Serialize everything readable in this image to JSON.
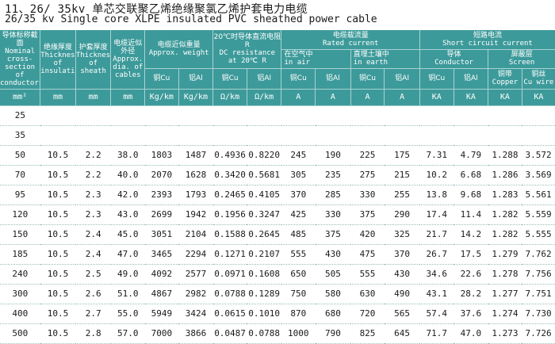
{
  "title": {
    "cn": "11、26/ 35kv  单芯交联聚乙烯绝缘聚氯乙烯护套电力电缆",
    "en": "26/35 kv  Single core XLPE insulated PVC sheathed power cable"
  },
  "headers": {
    "section": {
      "cn": "导体标称截面",
      "en": "Nominal cross-section of conductors"
    },
    "insulation": {
      "cn": "绝缘厚度",
      "en": "Thickness of insulation"
    },
    "sheath": {
      "cn": "护套厚度",
      "en": "Thickness of sheath"
    },
    "diameter": {
      "cn": "电缆近似外径",
      "en": "Approx. dia. of cables"
    },
    "weight": {
      "cn": "电缆近似重量",
      "en": "Approx. weight",
      "cu": "铜Cu",
      "al": "铝Al"
    },
    "resistance": {
      "cn": "20℃时导体直流电阻R",
      "en1": "DC resistance",
      "en2": "at 20℃ R",
      "cu": "铜Cu",
      "al": "铝Al"
    },
    "rated": {
      "cn": "电缆载流量",
      "en": "Rated current",
      "air_cn": "在空气中",
      "air_en": "in air",
      "earth_cn": "直埋土壤中",
      "earth_en": "in earth",
      "cu": "铜Cu",
      "al": "铝Al"
    },
    "short": {
      "cn": "短路电流",
      "en": "Short circuit current",
      "cond_cn": "导体",
      "cond_en": "Conductor",
      "screen_cn": "屏蔽层",
      "screen_en": "Screen",
      "cu": "铜Cu",
      "al": "铝Al",
      "tape_cn": "铜带",
      "tape_en": "Copper",
      "wire_cn": "铜丝",
      "wire_en": "Cu wire"
    }
  },
  "units": [
    "mm²",
    "mm",
    "mm",
    "mm",
    "Kg/km",
    "Kg/km",
    "Ω/km",
    "Ω/km",
    "A",
    "A",
    "A",
    "A",
    "KA",
    "KA",
    "KA",
    "KA"
  ],
  "rows": [
    [
      "25",
      "",
      "",
      "",
      "",
      "",
      "",
      "",
      "",
      "",
      "",
      "",
      "",
      "",
      "",
      ""
    ],
    [
      "35",
      "",
      "",
      "",
      "",
      "",
      "",
      "",
      "",
      "",
      "",
      "",
      "",
      "",
      "",
      ""
    ],
    [
      "50",
      "10.5",
      "2.2",
      "38.0",
      "1803",
      "1487",
      "0.4936",
      "0.8220",
      "245",
      "190",
      "225",
      "175",
      "7.31",
      "4.79",
      "1.288",
      "3.572"
    ],
    [
      "70",
      "10.5",
      "2.2",
      "40.0",
      "2070",
      "1628",
      "0.3420",
      "0.5681",
      "305",
      "235",
      "275",
      "215",
      "10.2",
      "6.68",
      "1.286",
      "3.569"
    ],
    [
      "95",
      "10.5",
      "2.3",
      "42.0",
      "2393",
      "1793",
      "0.2465",
      "0.4105",
      "370",
      "285",
      "330",
      "255",
      "13.8",
      "9.68",
      "1.283",
      "5.561"
    ],
    [
      "120",
      "10.5",
      "2.3",
      "43.0",
      "2699",
      "1942",
      "0.1956",
      "0.3247",
      "425",
      "330",
      "375",
      "290",
      "17.4",
      "11.4",
      "1.282",
      "5.559"
    ],
    [
      "150",
      "10.5",
      "2.4",
      "45.0",
      "3051",
      "2104",
      "0.1588",
      "0.2645",
      "485",
      "375",
      "420",
      "325",
      "21.7",
      "14.2",
      "1.282",
      "5.555"
    ],
    [
      "185",
      "10.5",
      "2.4",
      "47.0",
      "3465",
      "2294",
      "0.1271",
      "0.2107",
      "555",
      "430",
      "475",
      "370",
      "26.7",
      "17.5",
      "1.279",
      "7.762"
    ],
    [
      "240",
      "10.5",
      "2.5",
      "49.0",
      "4092",
      "2577",
      "0.0971",
      "0.1608",
      "650",
      "505",
      "555",
      "430",
      "34.6",
      "22.6",
      "1.278",
      "7.756"
    ],
    [
      "300",
      "10.5",
      "2.6",
      "51.0",
      "4867",
      "2982",
      "0.0788",
      "0.1289",
      "750",
      "580",
      "630",
      "490",
      "43.1",
      "28.2",
      "1.277",
      "7.751"
    ],
    [
      "400",
      "10.5",
      "2.7",
      "55.0",
      "5949",
      "3424",
      "0.0615",
      "0.1010",
      "870",
      "680",
      "720",
      "565",
      "57.4",
      "37.6",
      "1.274",
      "7.730"
    ],
    [
      "500",
      "10.5",
      "2.8",
      "57.0",
      "7000",
      "3866",
      "0.0487",
      "0.0788",
      "1000",
      "790",
      "825",
      "645",
      "71.7",
      "47.0",
      "1.273",
      "7.726"
    ]
  ]
}
